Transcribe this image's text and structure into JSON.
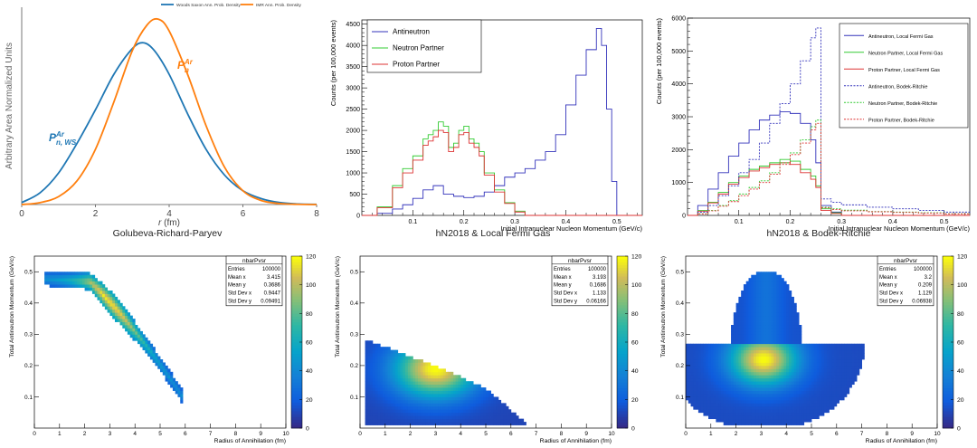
{
  "captions": {
    "gr": "Golubeva-Richard-Paryev",
    "lfg": "hN2018 & Local Fermi Gas",
    "br": "hN2018 & Bodek-Ritchie"
  },
  "chart_data": [
    {
      "id": "gr",
      "type": "line",
      "ylabel": "Arbitrary Area Normalized Units",
      "xlabel": "r (fm)",
      "xlim": [
        0,
        8
      ],
      "xticks": [
        0,
        2,
        4,
        6,
        8
      ],
      "grid": false,
      "legend_position": "top-right",
      "series": [
        {
          "name": "Woods Saxon Ann. Prob. Density",
          "color": "#1f77b4",
          "x": [
            0,
            0.5,
            1,
            1.5,
            2,
            2.5,
            3,
            3.3,
            3.6,
            4,
            4.5,
            5,
            5.5,
            6,
            6.5,
            7,
            7.5,
            8
          ],
          "y": [
            0.01,
            0.06,
            0.16,
            0.31,
            0.48,
            0.66,
            0.79,
            0.82,
            0.78,
            0.66,
            0.46,
            0.28,
            0.15,
            0.07,
            0.03,
            0.01,
            0.003,
            0.001
          ]
        },
        {
          "name": "IMR Ann. Prob. Density",
          "color": "#ff7f0e",
          "x": [
            0,
            0.5,
            1,
            1.5,
            2,
            2.5,
            3,
            3.4,
            3.7,
            4,
            4.5,
            5,
            5.5,
            6,
            6.5,
            7,
            7.5,
            8
          ],
          "y": [
            0.0,
            0.01,
            0.04,
            0.12,
            0.28,
            0.52,
            0.78,
            0.91,
            0.94,
            0.88,
            0.66,
            0.4,
            0.19,
            0.07,
            0.02,
            0.005,
            0.001,
            0.0
          ]
        }
      ],
      "annotations": [
        {
          "text": "P",
          "sub": "n, WS",
          "sup": "Ar",
          "color": "#1f77b4"
        },
        {
          "text": "P",
          "sub": "n",
          "sup": "Ar",
          "color": "#ff7f0e"
        }
      ]
    },
    {
      "id": "lfg",
      "type": "histogram",
      "ylabel": "Counts (per 100,000 events)",
      "xlabel": "Initial Intranuclear Nucleon Momentum (GeV/c)",
      "xlim": [
        0,
        0.55
      ],
      "ylim": [
        0,
        4600
      ],
      "xticks": [
        0.1,
        0.2,
        0.3,
        0.4,
        0.5
      ],
      "yticks": [
        0,
        500,
        1000,
        1500,
        2000,
        2500,
        3000,
        3500,
        4000,
        4500
      ],
      "legend_position": "top-left",
      "series": [
        {
          "name": "Antineutron",
          "color": "#3333bb",
          "x": [
            0,
            0.03,
            0.06,
            0.08,
            0.1,
            0.12,
            0.14,
            0.16,
            0.18,
            0.2,
            0.22,
            0.24,
            0.26,
            0.28,
            0.3,
            0.32,
            0.34,
            0.36,
            0.38,
            0.4,
            0.42,
            0.44,
            0.46,
            0.47,
            0.48,
            0.49,
            0.5,
            0.55
          ],
          "y": [
            0,
            50,
            150,
            250,
            400,
            600,
            700,
            500,
            450,
            420,
            450,
            550,
            700,
            900,
            1000,
            1100,
            1300,
            1500,
            1900,
            2600,
            3300,
            3900,
            4400,
            4000,
            2500,
            800,
            0,
            0
          ]
        },
        {
          "name": "Neutron Partner",
          "color": "#33cc33",
          "x": [
            0,
            0.03,
            0.06,
            0.08,
            0.1,
            0.12,
            0.13,
            0.14,
            0.15,
            0.16,
            0.17,
            0.18,
            0.19,
            0.2,
            0.21,
            0.22,
            0.23,
            0.24,
            0.26,
            0.28,
            0.3,
            0.32,
            0.34
          ],
          "y": [
            0,
            200,
            700,
            1100,
            1400,
            1800,
            1900,
            2000,
            2200,
            2100,
            1600,
            1700,
            2000,
            2100,
            1800,
            1700,
            1500,
            1000,
            600,
            300,
            100,
            0,
            0
          ]
        },
        {
          "name": "Proton Partner",
          "color": "#dd3333",
          "x": [
            0,
            0.03,
            0.06,
            0.08,
            0.1,
            0.12,
            0.13,
            0.14,
            0.15,
            0.16,
            0.17,
            0.18,
            0.19,
            0.2,
            0.21,
            0.22,
            0.23,
            0.24,
            0.26,
            0.28,
            0.3,
            0.32,
            0.34
          ],
          "y": [
            0,
            180,
            650,
            1000,
            1300,
            1650,
            1750,
            1850,
            2000,
            1950,
            1500,
            1600,
            1900,
            1950,
            1700,
            1600,
            1400,
            950,
            550,
            280,
            80,
            0,
            0
          ]
        }
      ]
    },
    {
      "id": "br",
      "type": "histogram",
      "ylabel": "Counts (per 100,000 events)",
      "xlabel": "Initial Intranuclear Nucleon Momentum (GeV/c)",
      "xlim": [
        0,
        0.55
      ],
      "ylim": [
        0,
        6000
      ],
      "xticks": [
        0.1,
        0.2,
        0.3,
        0.4,
        0.5
      ],
      "yticks": [
        0,
        1000,
        2000,
        3000,
        4000,
        5000,
        6000
      ],
      "legend_position": "top-right",
      "series": [
        {
          "name": "Antineutron, Local Fermi Gas",
          "color": "#3333bb",
          "dashed": false,
          "x": [
            0,
            0.02,
            0.04,
            0.06,
            0.08,
            0.1,
            0.12,
            0.14,
            0.16,
            0.18,
            0.2,
            0.22,
            0.24,
            0.25,
            0.26,
            0.28,
            0.3,
            0.55
          ],
          "y": [
            0,
            300,
            800,
            1300,
            1800,
            2200,
            2600,
            2900,
            3050,
            3150,
            3100,
            2800,
            2300,
            1600,
            300,
            100,
            0,
            0
          ]
        },
        {
          "name": "Neutron Partner, Local Fermi Gas",
          "color": "#33cc33",
          "dashed": false,
          "x": [
            0,
            0.02,
            0.04,
            0.06,
            0.08,
            0.1,
            0.12,
            0.14,
            0.16,
            0.18,
            0.2,
            0.22,
            0.24,
            0.25,
            0.26,
            0.28,
            0.3,
            0.55
          ],
          "y": [
            0,
            150,
            400,
            700,
            1000,
            1200,
            1400,
            1500,
            1600,
            1700,
            1650,
            1400,
            1200,
            900,
            200,
            80,
            0,
            0
          ]
        },
        {
          "name": "Proton Partner, Local Fermi Gas",
          "color": "#dd3333",
          "dashed": false,
          "x": [
            0,
            0.02,
            0.04,
            0.06,
            0.08,
            0.1,
            0.12,
            0.14,
            0.16,
            0.18,
            0.2,
            0.22,
            0.24,
            0.25,
            0.26,
            0.28,
            0.3,
            0.55
          ],
          "y": [
            0,
            130,
            380,
            650,
            950,
            1150,
            1350,
            1450,
            1550,
            1600,
            1550,
            1300,
            1100,
            850,
            150,
            60,
            0,
            0
          ]
        },
        {
          "name": "Antineutron, Bodek-Ritchie",
          "color": "#3333bb",
          "dashed": true,
          "x": [
            0,
            0.02,
            0.04,
            0.06,
            0.08,
            0.1,
            0.12,
            0.14,
            0.16,
            0.18,
            0.2,
            0.22,
            0.24,
            0.25,
            0.26,
            0.28,
            0.3,
            0.35,
            0.4,
            0.45,
            0.5,
            0.55
          ],
          "y": [
            0,
            100,
            300,
            600,
            900,
            1300,
            1700,
            2200,
            2800,
            3400,
            4000,
            4700,
            5400,
            5700,
            500,
            400,
            320,
            250,
            200,
            150,
            100,
            60
          ]
        },
        {
          "name": "Neutron Partner, Bodek-Ritchie",
          "color": "#33cc33",
          "dashed": true,
          "x": [
            0,
            0.02,
            0.04,
            0.06,
            0.08,
            0.1,
            0.12,
            0.14,
            0.16,
            0.18,
            0.2,
            0.22,
            0.24,
            0.25,
            0.26,
            0.28,
            0.3,
            0.35,
            0.4,
            0.45,
            0.5,
            0.55
          ],
          "y": [
            0,
            50,
            150,
            300,
            450,
            650,
            850,
            1050,
            1300,
            1600,
            1900,
            2300,
            2700,
            2900,
            250,
            200,
            160,
            120,
            100,
            80,
            50,
            30
          ]
        },
        {
          "name": "Proton Partner, Bodek-Ritchie",
          "color": "#dd3333",
          "dashed": true,
          "x": [
            0,
            0.02,
            0.04,
            0.06,
            0.08,
            0.1,
            0.12,
            0.14,
            0.16,
            0.18,
            0.2,
            0.22,
            0.24,
            0.25,
            0.26,
            0.28,
            0.3,
            0.35,
            0.4,
            0.45,
            0.5,
            0.55
          ],
          "y": [
            0,
            45,
            140,
            280,
            420,
            600,
            800,
            1000,
            1250,
            1550,
            1850,
            2200,
            2600,
            2800,
            230,
            180,
            140,
            110,
            90,
            70,
            45,
            25
          ]
        }
      ]
    },
    {
      "id": "h2d_gr",
      "type": "heatmap",
      "xlabel": "Radius of Annihilation (fm)",
      "ylabel": "Total Antineutron Momentum (GeV/c)",
      "xlim": [
        0,
        10
      ],
      "ylim": [
        0,
        0.55
      ],
      "xticks": [
        0,
        1,
        2,
        3,
        4,
        5,
        6,
        7,
        8,
        9,
        10
      ],
      "yticks": [
        0.1,
        0.2,
        0.3,
        0.4,
        0.5
      ],
      "zlim": [
        0,
        120
      ],
      "zticks": [
        0,
        20,
        40,
        60,
        80,
        100,
        120
      ],
      "stats": {
        "title": "nbarPvsr",
        "rows": [
          [
            "Entries",
            "100000"
          ],
          [
            "Mean x",
            "3.415"
          ],
          [
            "Mean y",
            "0.3686"
          ],
          [
            "Std Dev x",
            "0.9447"
          ],
          [
            "Std Dev y",
            "0.09491"
          ]
        ]
      }
    },
    {
      "id": "h2d_lfg",
      "type": "heatmap",
      "xlabel": "Radius of Annihilation (fm)",
      "ylabel": "Total Antineutron Momentum (GeV/c)",
      "xlim": [
        0,
        10
      ],
      "ylim": [
        0,
        0.55
      ],
      "xticks": [
        0,
        1,
        2,
        3,
        4,
        5,
        6,
        7,
        8,
        9,
        10
      ],
      "yticks": [
        0.1,
        0.2,
        0.3,
        0.4,
        0.5
      ],
      "zlim": [
        0,
        120
      ],
      "zticks": [
        0,
        20,
        40,
        60,
        80,
        100,
        120
      ],
      "stats": {
        "title": "nbarPvsr",
        "rows": [
          [
            "Entries",
            "100000"
          ],
          [
            "Mean x",
            "3.193"
          ],
          [
            "Mean y",
            "0.1686"
          ],
          [
            "Std Dev x",
            "1.133"
          ],
          [
            "Std Dev y",
            "0.06166"
          ]
        ]
      }
    },
    {
      "id": "h2d_br",
      "type": "heatmap",
      "xlabel": "Radius of Annihilation (fm)",
      "ylabel": "Total Antineutron Momentum (GeV/c)",
      "xlim": [
        0,
        10
      ],
      "ylim": [
        0,
        0.55
      ],
      "xticks": [
        0,
        1,
        2,
        3,
        4,
        5,
        6,
        7,
        8,
        9,
        10
      ],
      "yticks": [
        0.1,
        0.2,
        0.3,
        0.4,
        0.5
      ],
      "zlim": [
        0,
        120
      ],
      "zticks": [
        0,
        20,
        40,
        60,
        80,
        100,
        120
      ],
      "stats": {
        "title": "nbarPvsr",
        "rows": [
          [
            "Entries",
            "100000"
          ],
          [
            "Mean x",
            "3.2"
          ],
          [
            "Mean y",
            "0.209"
          ],
          [
            "Std Dev x",
            "1.129"
          ],
          [
            "Std Dev y",
            "0.06938"
          ]
        ]
      }
    }
  ]
}
